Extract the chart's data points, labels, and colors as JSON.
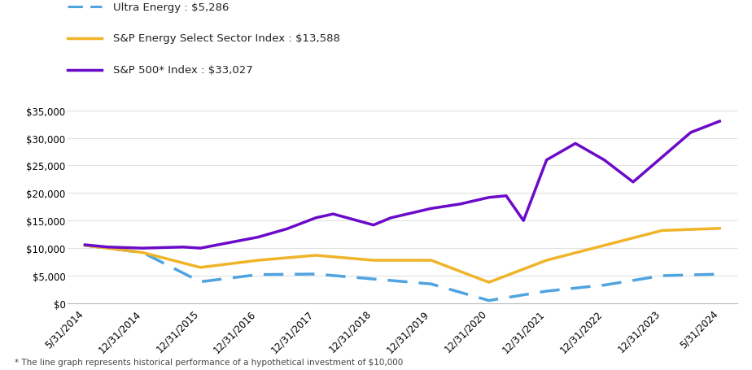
{
  "legend_entries": [
    "Ultra Energy : $5,286",
    "S&P Energy Select Sector Index : $13,588",
    "S&P 500* Index : $33,027"
  ],
  "footnote": "* The line graph represents historical performance of a hypothetical investment of $10,000",
  "x_labels": [
    "5/31/2014",
    "12/31/2014",
    "12/31/2015",
    "12/31/2016",
    "12/31/2017",
    "12/31/2018",
    "12/31/2019",
    "12/31/2020",
    "12/31/2021",
    "12/31/2022",
    "12/31/2023",
    "5/31/2024"
  ],
  "ultra_energy_x": [
    0,
    1,
    2,
    3,
    4,
    5,
    6,
    7,
    8,
    9,
    10,
    11
  ],
  "ultra_energy_y": [
    10500,
    9200,
    3900,
    5200,
    5300,
    4400,
    3500,
    500,
    2200,
    3300,
    5000,
    5286
  ],
  "sp_energy_x": [
    0,
    1,
    2,
    3,
    4,
    5,
    6,
    7,
    8,
    9,
    10,
    11
  ],
  "sp_energy_y": [
    10500,
    9200,
    6500,
    7800,
    8700,
    7800,
    7800,
    3800,
    7800,
    10500,
    13200,
    13588
  ],
  "sp500_x": [
    0,
    0.4,
    1,
    1.7,
    2,
    2.5,
    3,
    3.5,
    4,
    4.3,
    5,
    5.3,
    6,
    6.5,
    7,
    7.3,
    7.6,
    8,
    8.5,
    9,
    9.5,
    10,
    10.5,
    11
  ],
  "sp500_y": [
    10600,
    10200,
    10000,
    10200,
    10000,
    11000,
    12000,
    13500,
    15500,
    16200,
    14200,
    15500,
    17200,
    18000,
    19200,
    19500,
    15000,
    26000,
    29000,
    26000,
    22000,
    26500,
    31000,
    33027
  ],
  "colors": {
    "ultra_energy": "#4fa3e0",
    "sp_energy": "#f0b429",
    "sp500": "#6b0ac9"
  },
  "ylim": [
    0,
    37000
  ],
  "yticks": [
    0,
    5000,
    10000,
    15000,
    20000,
    25000,
    30000,
    35000
  ],
  "background_color": "#ffffff",
  "grid_color": "#e0e0e0"
}
